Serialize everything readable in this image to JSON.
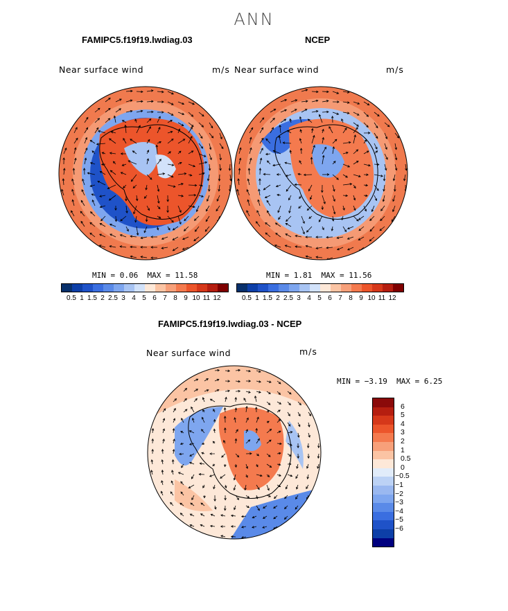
{
  "main_title": "ANN",
  "panels": [
    {
      "title": "FAMIPC5.f19f19.lwdiag.03",
      "variable": "Near surface wind",
      "units": "m/s",
      "min_label": "MIN =",
      "min_value": "0.06",
      "max_label": "MAX =",
      "max_value": "11.58"
    },
    {
      "title": "NCEP",
      "variable": "Near surface wind",
      "units": "m/s",
      "min_label": "MIN =",
      "min_value": "1.81",
      "max_label": "MAX =",
      "max_value": "11.56"
    },
    {
      "title": "FAMIPC5.f19f19.lwdiag.03 - NCEP",
      "variable": "Near surface wind",
      "units": "m/s",
      "min_label": "MIN =",
      "min_value": "−3.19",
      "max_label": "MAX =",
      "max_value": "6.25"
    }
  ],
  "chart_data": [
    {
      "type": "heatmap",
      "projection": "south-polar-stereographic",
      "title": "FAMIPC5.f19f19.lwdiag.03",
      "variable": "Near surface wind",
      "units": "m/s",
      "min": 0.06,
      "max": 11.58,
      "colorbar_ticks": [
        "0.5",
        "1",
        "1.5",
        "2",
        "2.5",
        "3",
        "4",
        "5",
        "6",
        "7",
        "8",
        "9",
        "10",
        "11",
        "12"
      ]
    },
    {
      "type": "heatmap",
      "projection": "south-polar-stereographic",
      "title": "NCEP",
      "variable": "Near surface wind",
      "units": "m/s",
      "min": 1.81,
      "max": 11.56,
      "colorbar_ticks": [
        "0.5",
        "1",
        "1.5",
        "2",
        "2.5",
        "3",
        "4",
        "5",
        "6",
        "7",
        "8",
        "9",
        "10",
        "11",
        "12"
      ]
    },
    {
      "type": "heatmap",
      "projection": "south-polar-stereographic",
      "title": "FAMIPC5.f19f19.lwdiag.03 - NCEP",
      "variable": "Near surface wind",
      "units": "m/s",
      "min": -3.19,
      "max": 6.25,
      "colorbar_ticks": [
        "6",
        "5",
        "4",
        "3",
        "2",
        "1",
        "0.5",
        "0",
        "−0.5",
        "−1",
        "−2",
        "−3",
        "−4",
        "−5",
        "−6"
      ]
    }
  ],
  "colors": {
    "abs_scale": [
      "#08306b",
      "#0d3fa8",
      "#1f52c8",
      "#3a6ee0",
      "#5a8ae8",
      "#7ea6ef",
      "#a8c4f3",
      "#d2e2fa",
      "#fde8d8",
      "#fbc4a4",
      "#f7a07a",
      "#f47a4e",
      "#ec552b",
      "#d6381a",
      "#b51e10",
      "#7f0000"
    ],
    "diff_scale": [
      "#7f0000",
      "#b51e10",
      "#d6381a",
      "#ec552b",
      "#f47a4e",
      "#f7a07a",
      "#fbc4a4",
      "#fde8d8",
      "#d2e2fa",
      "#a8c4f3",
      "#7ea6ef",
      "#5a8ae8",
      "#3a6ee0",
      "#1f52c8",
      "#0d3fa8",
      "#08306b"
    ],
    "diff_bar": [
      "#8b0a0a",
      "#b51e10",
      "#d6381a",
      "#ec552b",
      "#f47a4e",
      "#f7a07a",
      "#fbc4a4",
      "#fde8d8",
      "#e1ecfa",
      "#bcd2f5",
      "#9ab8f0",
      "#7ea6ef",
      "#5a8ae8",
      "#3a6ee0",
      "#1f52c8",
      "#0d3fa8",
      "#00007f"
    ]
  }
}
